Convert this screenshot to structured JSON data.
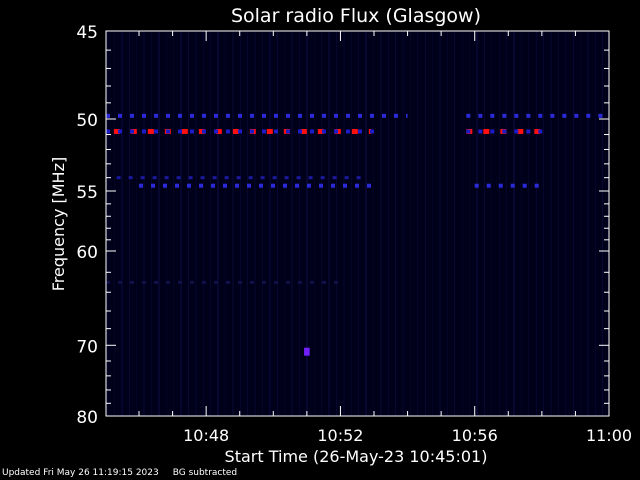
{
  "chart_data": {
    "type": "heatmap",
    "title": "Solar radio Flux (Glasgow)",
    "xlabel": "Start Time (26-May-23 10:45:01)",
    "ylabel": "Frequency [MHz]",
    "xlim": [
      "10:45:01",
      "11:00:00"
    ],
    "ylim": [
      45,
      80
    ],
    "y_reversed": true,
    "xticks": [
      "10:48",
      "10:52",
      "10:56",
      "11:00"
    ],
    "yticks": [
      45,
      50,
      55,
      60,
      70,
      80
    ],
    "background_color": "#00001a",
    "bands": [
      {
        "freq": 49.8,
        "segments": [
          [
            "10:45:01",
            "10:54:00"
          ],
          [
            "10:55:45",
            "11:00:00"
          ]
        ],
        "color": "#2a2ad8",
        "intensity": "medium"
      },
      {
        "freq": 50.8,
        "segments": [
          [
            "10:45:15",
            "10:52:55"
          ],
          [
            "10:55:45",
            "10:58:00"
          ]
        ],
        "color": "#ff1010",
        "intensity": "high"
      },
      {
        "freq": 50.8,
        "segments": [
          [
            "10:45:01",
            "10:53:00"
          ],
          [
            "10:55:45",
            "10:58:10"
          ]
        ],
        "color": "#1c1cc8",
        "intensity": "medium"
      },
      {
        "freq": 54.0,
        "segments": [
          [
            "10:45:20",
            "10:52:40"
          ]
        ],
        "color": "#1a1aa0",
        "intensity": "low"
      },
      {
        "freq": 54.6,
        "segments": [
          [
            "10:46:00",
            "10:53:00"
          ],
          [
            "10:56:00",
            "10:58:00"
          ]
        ],
        "color": "#2a2ad8",
        "intensity": "medium"
      },
      {
        "freq": 63.0,
        "segments": [
          [
            "10:45:01",
            "10:52:00"
          ]
        ],
        "color": "#10104a",
        "intensity": "low"
      },
      {
        "freq": 70.8,
        "segments": [
          [
            "10:50:55",
            "10:51:05"
          ]
        ],
        "color": "#7020ff",
        "intensity": "spot"
      }
    ]
  },
  "footer": {
    "updated": "Updated Fri May 26 11:19:15 2023",
    "bg_note": "BG subtracted"
  }
}
